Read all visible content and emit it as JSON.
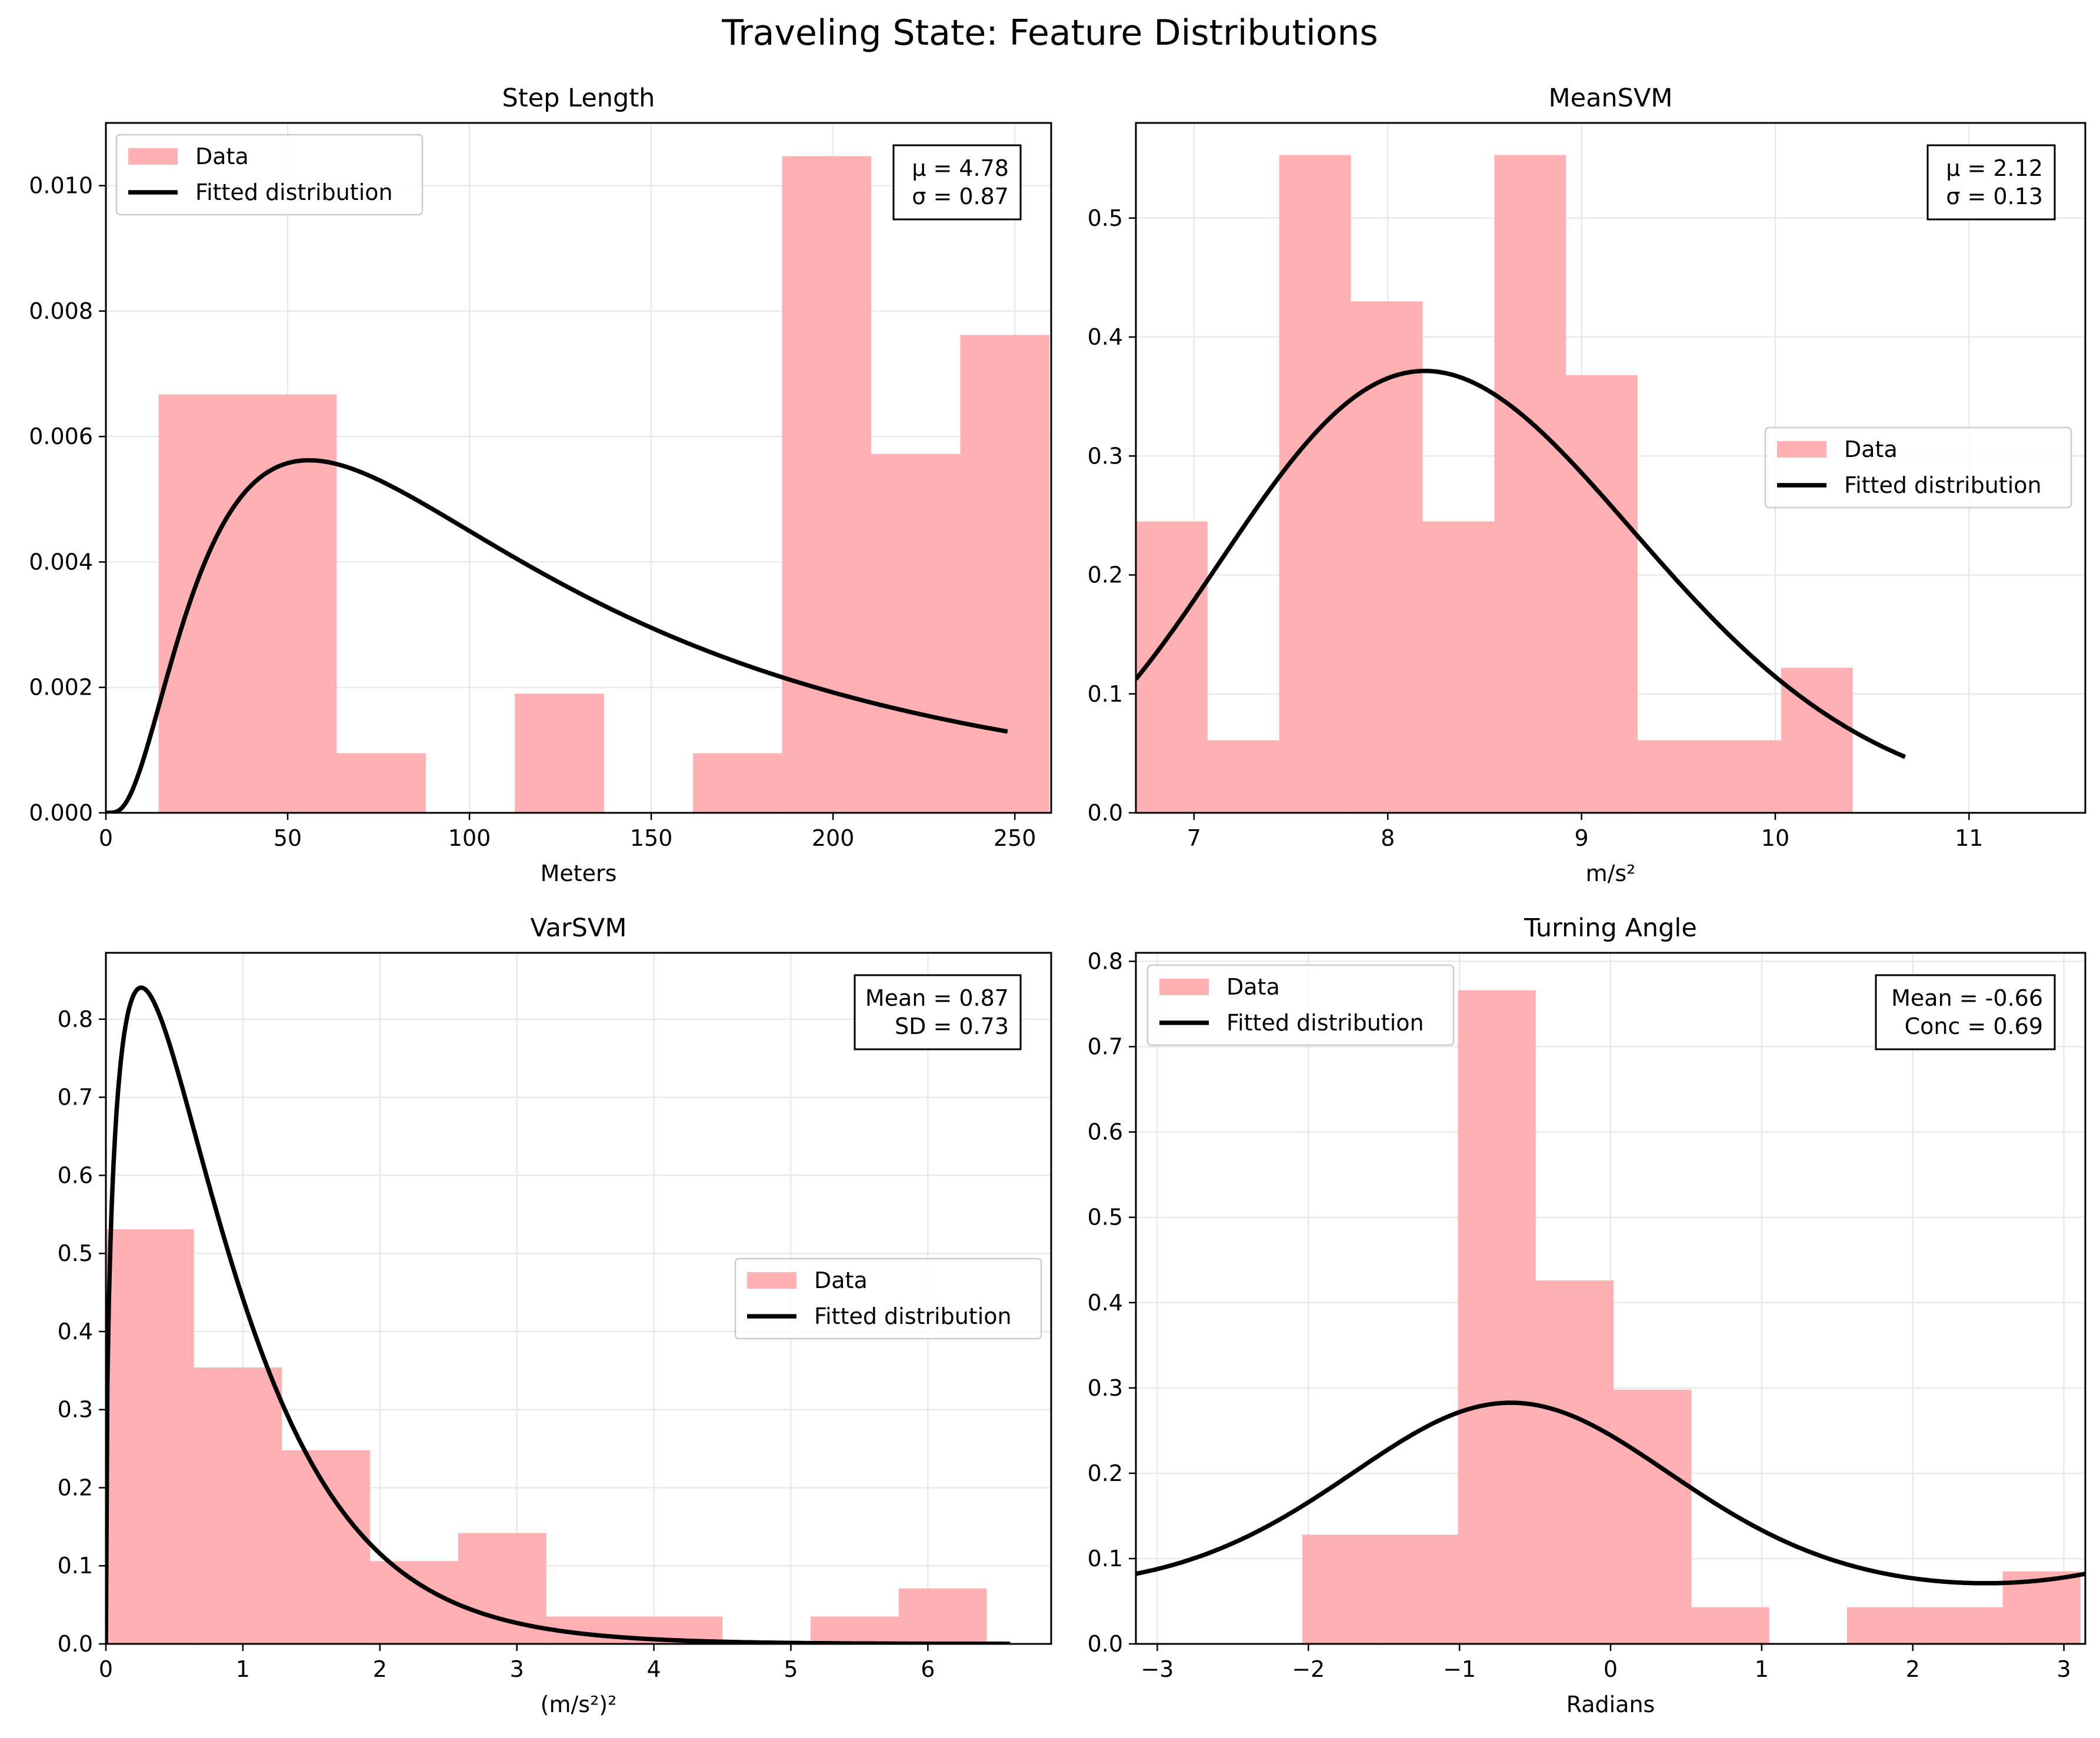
{
  "figure": {
    "title": "Traveling State: Feature Distributions"
  },
  "colors": {
    "hist": "#ffb0b2",
    "curve": "#000000",
    "grid": "#e6e6e6"
  },
  "chart_data": [
    {
      "type": "bar",
      "title": "Step Length",
      "xlabel": "Meters",
      "xlim": [
        0,
        260
      ],
      "ylim": [
        0,
        0.011
      ],
      "xticks": [
        0,
        50,
        100,
        150,
        200,
        250
      ],
      "xtick_labels": [
        "0",
        "50",
        "100",
        "150",
        "200",
        "250"
      ],
      "yticks": [
        0,
        0.002,
        0.004,
        0.006,
        0.008,
        0.01
      ],
      "ytick_labels": [
        "0.000",
        "0.002",
        "0.004",
        "0.006",
        "0.008",
        "0.010"
      ],
      "bin_edges": [
        14.5,
        39,
        63.5,
        88,
        112.5,
        137,
        161.5,
        186,
        210.5,
        235,
        259.5
      ],
      "values": [
        0.00667,
        0.00667,
        0.00095,
        0,
        0.0019,
        0,
        0.00095,
        0.01047,
        0.00572,
        0.00762
      ],
      "series": [
        {
          "name": "Data"
        },
        {
          "name": "Fitted distribution",
          "dist": "lognormal",
          "params": {
            "mu": 4.78,
            "sigma": 0.87
          },
          "range": [
            0,
            248
          ]
        }
      ],
      "stats": [
        "μ = 4.78",
        "σ = 0.87"
      ],
      "legend": "top-left",
      "grid": true
    },
    {
      "type": "bar",
      "title": "MeanSVM",
      "xlabel": "m/s²",
      "xlim": [
        6.7,
        11.6
      ],
      "ylim": [
        0,
        0.58
      ],
      "xticks": [
        7,
        8,
        9,
        10,
        11
      ],
      "xtick_labels": [
        "7",
        "8",
        "9",
        "10",
        "11"
      ],
      "yticks": [
        0,
        0.1,
        0.2,
        0.3,
        0.4,
        0.5
      ],
      "ytick_labels": [
        "0.0",
        "0.1",
        "0.2",
        "0.3",
        "0.4",
        "0.5"
      ],
      "bin_edges": [
        6.7,
        7.07,
        7.44,
        7.81,
        8.18,
        8.55,
        8.92,
        9.29,
        9.66,
        10.03,
        10.4
      ],
      "values": [
        0.245,
        0.061,
        0.553,
        0.43,
        0.245,
        0.553,
        0.368,
        0.061,
        0.061,
        0.122
      ],
      "series": [
        {
          "name": "Data"
        },
        {
          "name": "Fitted distribution",
          "dist": "lognormal",
          "params": {
            "mu": 2.12,
            "sigma": 0.13
          },
          "range": [
            6.7,
            10.67
          ]
        }
      ],
      "stats": [
        "μ = 2.12",
        "σ = 0.13"
      ],
      "legend": "center-right",
      "grid": true
    },
    {
      "type": "bar",
      "title": "VarSVM",
      "xlabel": "(m/s²)²",
      "xlim": [
        0,
        6.9
      ],
      "ylim": [
        0,
        0.885
      ],
      "xticks": [
        0,
        1,
        2,
        3,
        4,
        5,
        6
      ],
      "xtick_labels": [
        "0",
        "1",
        "2",
        "3",
        "4",
        "5",
        "6"
      ],
      "yticks": [
        0,
        0.1,
        0.2,
        0.3,
        0.4,
        0.5,
        0.6,
        0.7,
        0.8
      ],
      "ytick_labels": [
        "0.0",
        "0.1",
        "0.2",
        "0.3",
        "0.4",
        "0.5",
        "0.6",
        "0.7",
        "0.8"
      ],
      "bin_edges": [
        0,
        0.643,
        1.286,
        1.929,
        2.572,
        3.215,
        3.858,
        4.501,
        5.144,
        5.787,
        6.43
      ],
      "values": [
        0.531,
        0.354,
        0.248,
        0.106,
        0.142,
        0.035,
        0.035,
        0,
        0.035,
        0.071
      ],
      "series": [
        {
          "name": "Data"
        },
        {
          "name": "Fitted distribution",
          "dist": "gamma",
          "params": {
            "mean": 0.87,
            "sd": 0.73
          },
          "range": [
            0,
            6.6
          ]
        }
      ],
      "stats": [
        "Mean = 0.87",
        "SD = 0.73"
      ],
      "legend": "center-right",
      "grid": true
    },
    {
      "type": "bar",
      "title": "Turning Angle",
      "xlabel": "Radians",
      "xlim": [
        -3.1416,
        3.1416
      ],
      "ylim": [
        0,
        0.81
      ],
      "xticks": [
        -3,
        -2,
        -1,
        0,
        1,
        2,
        3
      ],
      "xtick_labels": [
        "−3",
        "−2",
        "−1",
        "0",
        "1",
        "2",
        "3"
      ],
      "yticks": [
        0,
        0.1,
        0.2,
        0.3,
        0.4,
        0.5,
        0.6,
        0.7,
        0.8
      ],
      "ytick_labels": [
        "0.0",
        "0.1",
        "0.2",
        "0.3",
        "0.4",
        "0.5",
        "0.6",
        "0.7",
        "0.8"
      ],
      "bin_edges": [
        -2.04,
        -1.525,
        -1.01,
        -0.495,
        0.02,
        0.535,
        1.05,
        1.565,
        2.08,
        2.595,
        3.11
      ],
      "values": [
        0.128,
        0.128,
        0.766,
        0.426,
        0.298,
        0.043,
        0,
        0.043,
        0.043,
        0.085
      ],
      "series": [
        {
          "name": "Data"
        },
        {
          "name": "Fitted distribution",
          "dist": "vonmises",
          "params": {
            "mean": -0.66,
            "conc": 0.69
          },
          "range": [
            -3.1416,
            3.1416
          ]
        }
      ],
      "stats": [
        "Mean = -0.66",
        "Conc = 0.69"
      ],
      "legend": "top-left",
      "grid": true
    }
  ]
}
